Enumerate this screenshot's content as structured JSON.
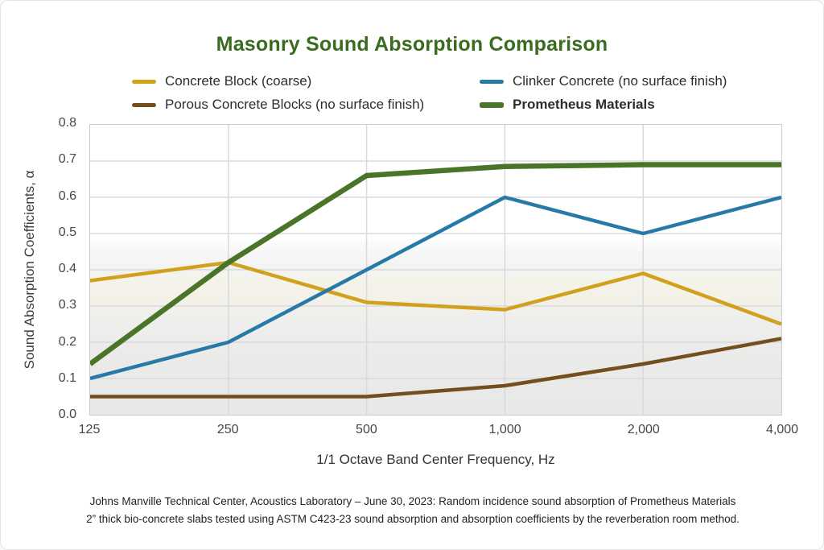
{
  "chart_data": {
    "type": "line",
    "title": "Masonry Sound Absorption Comparison",
    "title_color": "#3a6c1f",
    "xlabel": "1/1 Octave Band Center Frequency, Hz",
    "ylabel": "Sound Absorption Coefficients, α",
    "x_categories": [
      "125",
      "250",
      "500",
      "1,000",
      "2,000",
      "4,000"
    ],
    "ylim": [
      0,
      0.8
    ],
    "ytick_step": 0.1,
    "grid": true,
    "gridline_color": "#d7dadd",
    "legend_position": "top",
    "series": [
      {
        "name": "Concrete Block (coarse)",
        "color": "#d1a01c",
        "line_width": 4.5,
        "bold_label": false,
        "values": [
          0.37,
          0.42,
          0.31,
          0.29,
          0.39,
          0.25
        ]
      },
      {
        "name": "Clinker Concrete (no surface finish)",
        "color": "#2779a7",
        "line_width": 4.5,
        "bold_label": false,
        "values": [
          0.1,
          0.2,
          0.4,
          0.6,
          0.5,
          0.6
        ]
      },
      {
        "name": "Porous Concrete Blocks (no surface finish)",
        "color": "#744e1d",
        "line_width": 4.5,
        "bold_label": false,
        "values": [
          0.05,
          0.05,
          0.05,
          0.08,
          0.14,
          0.21
        ]
      },
      {
        "name": "Prometheus Materials",
        "color": "#4a7428",
        "line_width": 6.5,
        "bold_label": true,
        "values": [
          0.14,
          0.42,
          0.66,
          0.685,
          0.69,
          0.69
        ]
      }
    ]
  },
  "caption": {
    "line1": "Johns Manville Technical Center, Acoustics Laboratory – June 30, 2023: Random incidence sound absorption of Prometheus Materials",
    "line2": "2” thick bio-concrete slabs tested using ASTM C423-23 sound absorption and absorption coefficients by the reverberation room method."
  }
}
